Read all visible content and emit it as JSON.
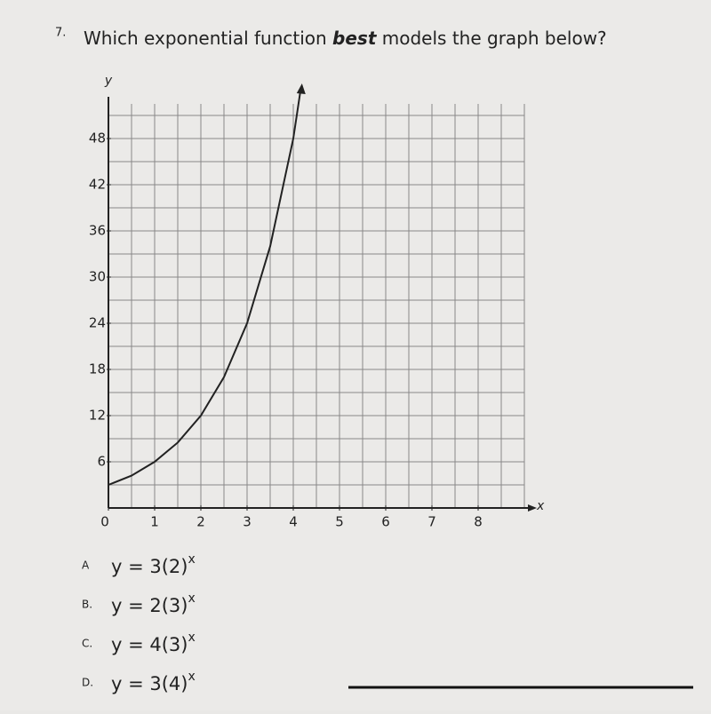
{
  "question": {
    "number": "7.",
    "text_before": "Which exponential function ",
    "emphasis": "best",
    "text_after": " models the graph below?"
  },
  "graph": {
    "type": "line",
    "x_label": "x",
    "y_label": "y",
    "xlim": [
      0,
      9
    ],
    "ylim": [
      0,
      52.5
    ],
    "xticks": [
      0,
      1,
      2,
      3,
      4,
      5,
      6,
      7,
      8
    ],
    "yticks": [
      6,
      12,
      18,
      24,
      30,
      36,
      42,
      48
    ],
    "grid_step_x": 0.5,
    "grid_step_y": 3,
    "curve": {
      "x": [
        0,
        0.5,
        1,
        1.5,
        2,
        2.5,
        3,
        3.5,
        4,
        4.15
      ],
      "y": [
        3,
        4.2,
        6,
        8.5,
        12,
        17,
        24,
        34,
        48,
        54
      ]
    }
  },
  "options": [
    {
      "letter": "A",
      "text": "y = 3(2)",
      "exponent": "x"
    },
    {
      "letter": "B.",
      "text": "y = 2(3)",
      "exponent": "x"
    },
    {
      "letter": "C.",
      "text": "y = 4(3)",
      "exponent": "x"
    },
    {
      "letter": "D.",
      "text": "y = 3(4)",
      "exponent": "x"
    }
  ]
}
